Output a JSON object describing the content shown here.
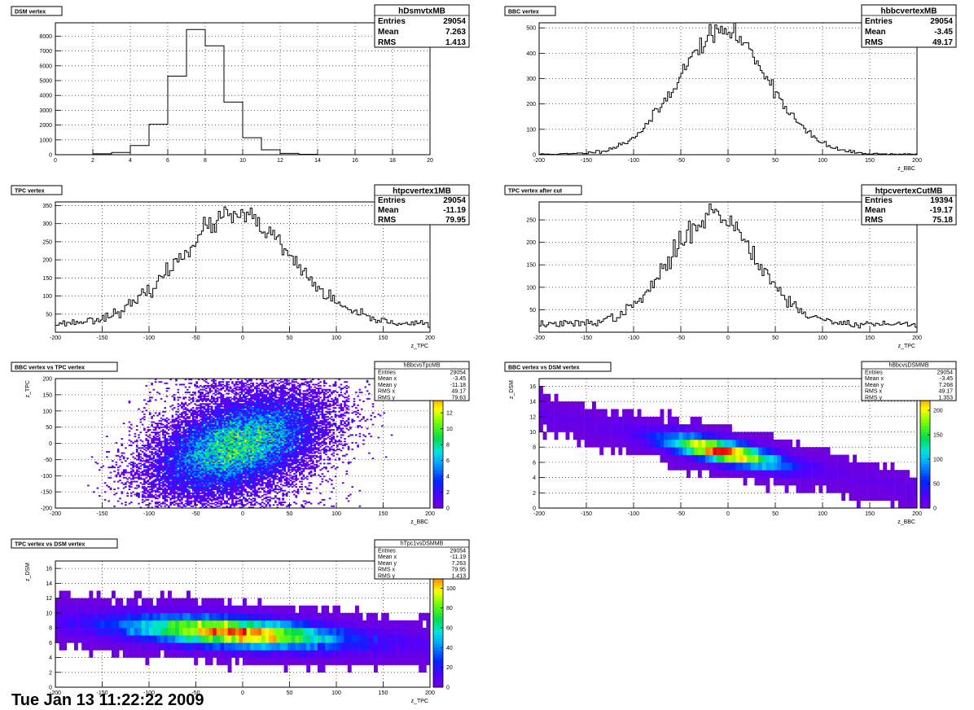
{
  "footer_text": "Tue Jan 13 11:22:22 2009",
  "chart_data": [
    {
      "type": "histogram",
      "title": "DSM vertex",
      "xlabel": "",
      "xlim": [
        0,
        20
      ],
      "ylim": [
        0,
        8900
      ],
      "xticks": [
        0,
        2,
        4,
        6,
        8,
        10,
        12,
        14,
        16,
        18,
        20
      ],
      "yticks": [
        0,
        1000,
        2000,
        3000,
        4000,
        5000,
        6000,
        7000,
        8000
      ],
      "grid": true,
      "bins": {
        "edges": [
          0,
          1,
          2,
          3,
          4,
          5,
          6,
          7,
          8,
          9,
          10,
          11,
          12,
          13,
          14
        ],
        "values": [
          0,
          0,
          60,
          150,
          620,
          2050,
          5300,
          8450,
          7350,
          3550,
          1150,
          330,
          90,
          30
        ]
      },
      "stats": {
        "name": "hDsmvtxMB",
        "rows": [
          [
            "Entries",
            "29054"
          ],
          [
            "Mean",
            "7.263"
          ],
          [
            "RMS",
            "1.413"
          ]
        ]
      }
    },
    {
      "type": "histogram",
      "title": "BBC vertex",
      "xlabel": "z_BBC",
      "xlim": [
        -200,
        200
      ],
      "ylim": [
        0,
        520
      ],
      "xticks": [
        -200,
        -150,
        -100,
        -50,
        0,
        50,
        100,
        150,
        200
      ],
      "yticks": [
        0,
        100,
        200,
        300,
        400,
        500
      ],
      "grid": true,
      "gauss": {
        "mean": -5,
        "sigma": 48,
        "peak": 485,
        "base": 2,
        "nbins": 200,
        "seed": 11
      },
      "stats": {
        "name": "hbbcvertexMB",
        "rows": [
          [
            "Entries",
            "29054"
          ],
          [
            "Mean",
            "-3.45"
          ],
          [
            "RMS",
            "49.17"
          ]
        ]
      }
    },
    {
      "type": "histogram",
      "title": "TPC vertex",
      "xlabel": "z_TPC",
      "xlim": [
        -200,
        200
      ],
      "ylim": [
        0,
        360
      ],
      "xticks": [
        -200,
        -150,
        -100,
        -50,
        0,
        50,
        100,
        150,
        200
      ],
      "yticks": [
        50,
        100,
        150,
        200,
        250,
        300,
        350
      ],
      "grid": true,
      "gauss": {
        "mean": -8,
        "sigma": 60,
        "peak": 300,
        "base": 22,
        "nbins": 200,
        "seed": 23
      },
      "stats": {
        "name": "htpcvertex1MB",
        "rows": [
          [
            "Entries",
            "29054"
          ],
          [
            "Mean",
            "-11.19"
          ],
          [
            "RMS",
            "79.95"
          ]
        ]
      }
    },
    {
      "type": "histogram",
      "title": "TPC vertex after cut",
      "xlabel": "z_TPC",
      "xlim": [
        -200,
        200
      ],
      "ylim": [
        0,
        290
      ],
      "xticks": [
        -200,
        -150,
        -100,
        -50,
        0,
        50,
        100,
        150,
        200
      ],
      "yticks": [
        50,
        100,
        150,
        200,
        250
      ],
      "grid": true,
      "gauss": {
        "mean": -15,
        "sigma": 45,
        "peak": 245,
        "base": 18,
        "nbins": 200,
        "seed": 37
      },
      "stats": {
        "name": "htpcvertexCutMB",
        "rows": [
          [
            "Entries",
            "19394"
          ],
          [
            "Mean",
            "-19.17"
          ],
          [
            "RMS",
            "75.18"
          ]
        ]
      }
    },
    {
      "type": "heatmap",
      "title": "BBC vertex vs TPC vertex",
      "xlabel": "z_BBC",
      "ylabel": "z_TPC",
      "xlim": [
        -200,
        200
      ],
      "ylim": [
        -200,
        200
      ],
      "xticks": [
        -200,
        -150,
        -100,
        -50,
        0,
        50,
        100,
        150,
        200
      ],
      "yticks": [
        -200,
        -150,
        -100,
        -50,
        0,
        50,
        100,
        150,
        200
      ],
      "zmax": 16,
      "zticks": [
        0,
        2,
        4,
        6,
        8,
        10,
        12,
        14,
        16
      ],
      "grid": true,
      "gen": {
        "kind": "corr",
        "mx": -5,
        "sx": 45,
        "my": -5,
        "sy": 75,
        "rho": 0.45,
        "xmin": -175,
        "xmax": 175,
        "nx": 200,
        "ny": 100,
        "n": 29054,
        "seed": 5
      },
      "stats": {
        "name": "hBbcvsTpcMB",
        "rows": [
          [
            "Entries",
            "29054"
          ],
          [
            "Mean x",
            "-3.45"
          ],
          [
            "Mean y",
            "-11.18"
          ],
          [
            "RMS x",
            "49.17"
          ],
          [
            "RMS y",
            "79.63"
          ]
        ]
      }
    },
    {
      "type": "heatmap",
      "title": "BBC vertex vs DSM vertex",
      "xlabel": "z_BBC",
      "ylabel": "z_DSM",
      "xlim": [
        -200,
        200
      ],
      "ylim": [
        0,
        17
      ],
      "xticks": [
        -200,
        -150,
        -100,
        -50,
        0,
        50,
        100,
        150,
        200
      ],
      "yticks": [
        0,
        2,
        4,
        6,
        8,
        10,
        12,
        14,
        16
      ],
      "zmax": 260,
      "zticks": [
        0,
        50,
        100,
        150,
        200,
        250
      ],
      "grid": true,
      "gen": {
        "kind": "dsm",
        "mx": -5,
        "sx": 40,
        "slope": -0.025,
        "sd": 0.9,
        "xmin": -200,
        "xmax": 200,
        "nx": 100,
        "ny": 17,
        "n": 29054,
        "seed": 9
      },
      "stats": {
        "name": "hBbcvsDSMMB",
        "rows": [
          [
            "Entries",
            "29054"
          ],
          [
            "Mean x",
            "-3.45"
          ],
          [
            "Mean y",
            "7.268"
          ],
          [
            "RMS x",
            "49.17"
          ],
          [
            "RMS y",
            "1.353"
          ]
        ]
      }
    },
    {
      "type": "heatmap",
      "title": "TPC vertex vs DSM vertex",
      "xlabel": "z_TPC",
      "ylabel": "z_DSM",
      "xlim": [
        -200,
        200
      ],
      "ylim": [
        0,
        17
      ],
      "xticks": [
        -200,
        -150,
        -100,
        -50,
        0,
        50,
        100,
        150,
        200
      ],
      "yticks": [
        0,
        2,
        4,
        6,
        8,
        10,
        12,
        14,
        16
      ],
      "zmax": 125,
      "zticks": [
        0,
        20,
        40,
        60,
        80,
        100,
        120
      ],
      "grid": true,
      "gen": {
        "kind": "dsm",
        "mx": -10,
        "sx": 70,
        "slope": -0.008,
        "sd": 1.2,
        "xmin": -200,
        "xmax": 200,
        "nx": 100,
        "ny": 17,
        "n": 29054,
        "seed": 13
      },
      "stats": {
        "name": "hTpc1vsDSMMB",
        "rows": [
          [
            "Entries",
            "29054"
          ],
          [
            "Mean x",
            "-11.19"
          ],
          [
            "Mean y",
            "7.263"
          ],
          [
            "RMS x",
            "79.95"
          ],
          [
            "RMS y",
            "1.413"
          ]
        ]
      }
    }
  ]
}
